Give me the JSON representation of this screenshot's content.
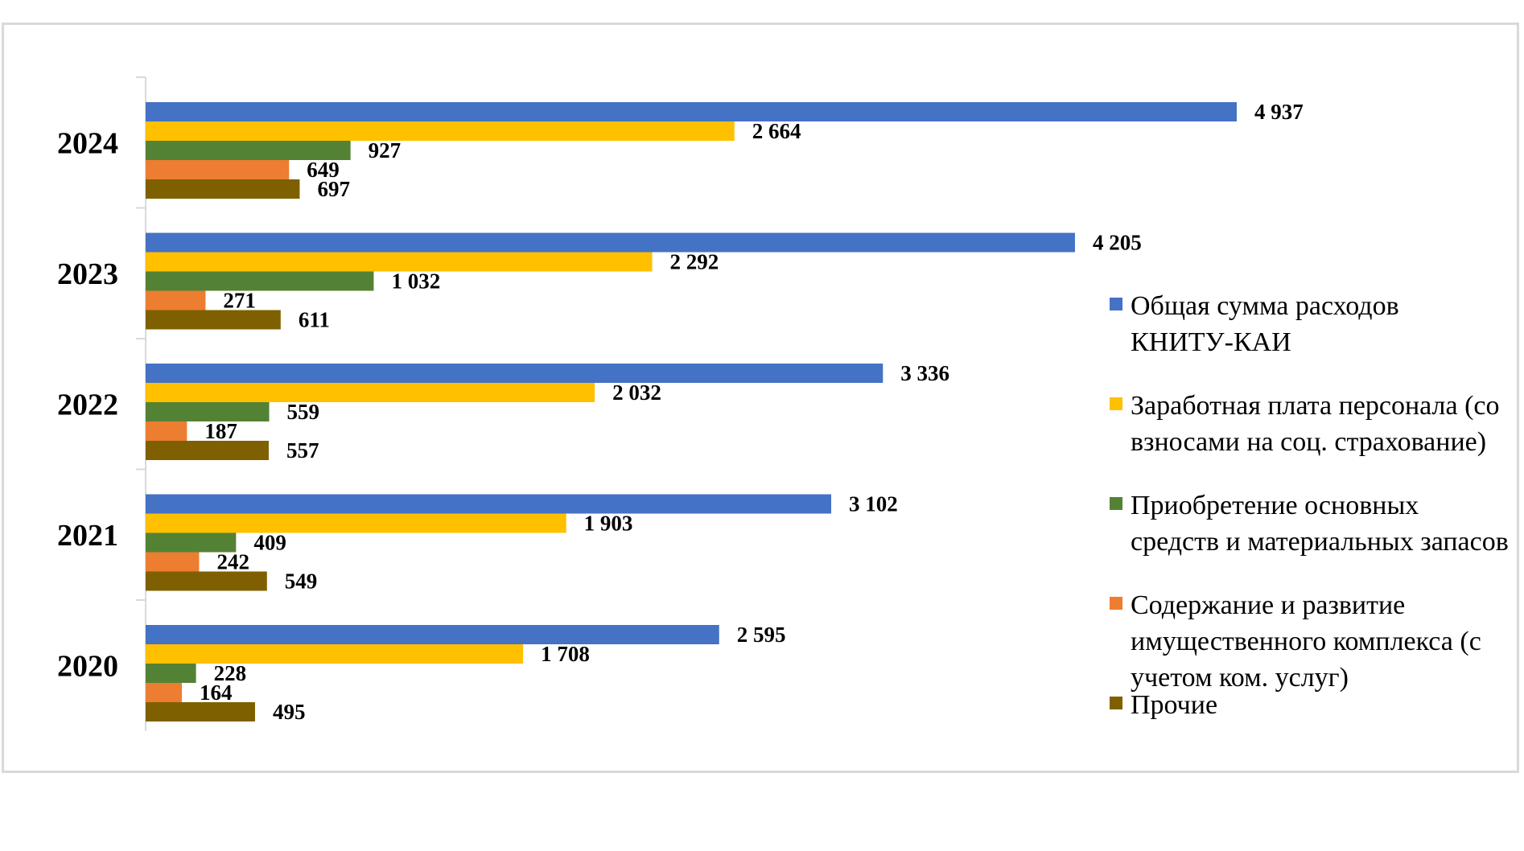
{
  "chart_data": {
    "type": "bar",
    "orientation": "horizontal",
    "categories": [
      "2024",
      "2023",
      "2022",
      "2021",
      "2020"
    ],
    "series": [
      {
        "name": "Общая сумма расходов КНИТУ-КАИ",
        "color": "#4472C4",
        "values": [
          4937,
          4205,
          3336,
          3102,
          2595
        ],
        "labels": [
          "4 937",
          "4 205",
          "3 336",
          "3 102",
          "2 595"
        ]
      },
      {
        "name": "Заработная плата персонала (со взносами на соц. страхование)",
        "color": "#FFC000",
        "values": [
          2664,
          2292,
          2032,
          1903,
          1708
        ],
        "labels": [
          "2 664",
          "2 292",
          "2 032",
          "1 903",
          "1 708"
        ]
      },
      {
        "name": "Приобретение основных средств и материальных запасов",
        "color": "#548235",
        "values": [
          927,
          1032,
          559,
          409,
          228
        ],
        "labels": [
          "927",
          "1 032",
          "559",
          "409",
          "228"
        ]
      },
      {
        "name": "Содержание и развитие имущественного комплекса (с учетом ком. услуг)",
        "color": "#ED7D31",
        "values": [
          649,
          271,
          187,
          242,
          164
        ],
        "labels": [
          "649",
          "271",
          "187",
          "242",
          "164"
        ]
      },
      {
        "name": "Прочие",
        "color": "#7F6000",
        "values": [
          697,
          611,
          557,
          549,
          495
        ],
        "labels": [
          "697",
          "611",
          "557",
          "549",
          "495"
        ]
      }
    ],
    "legend_position": "right",
    "grid": false
  }
}
